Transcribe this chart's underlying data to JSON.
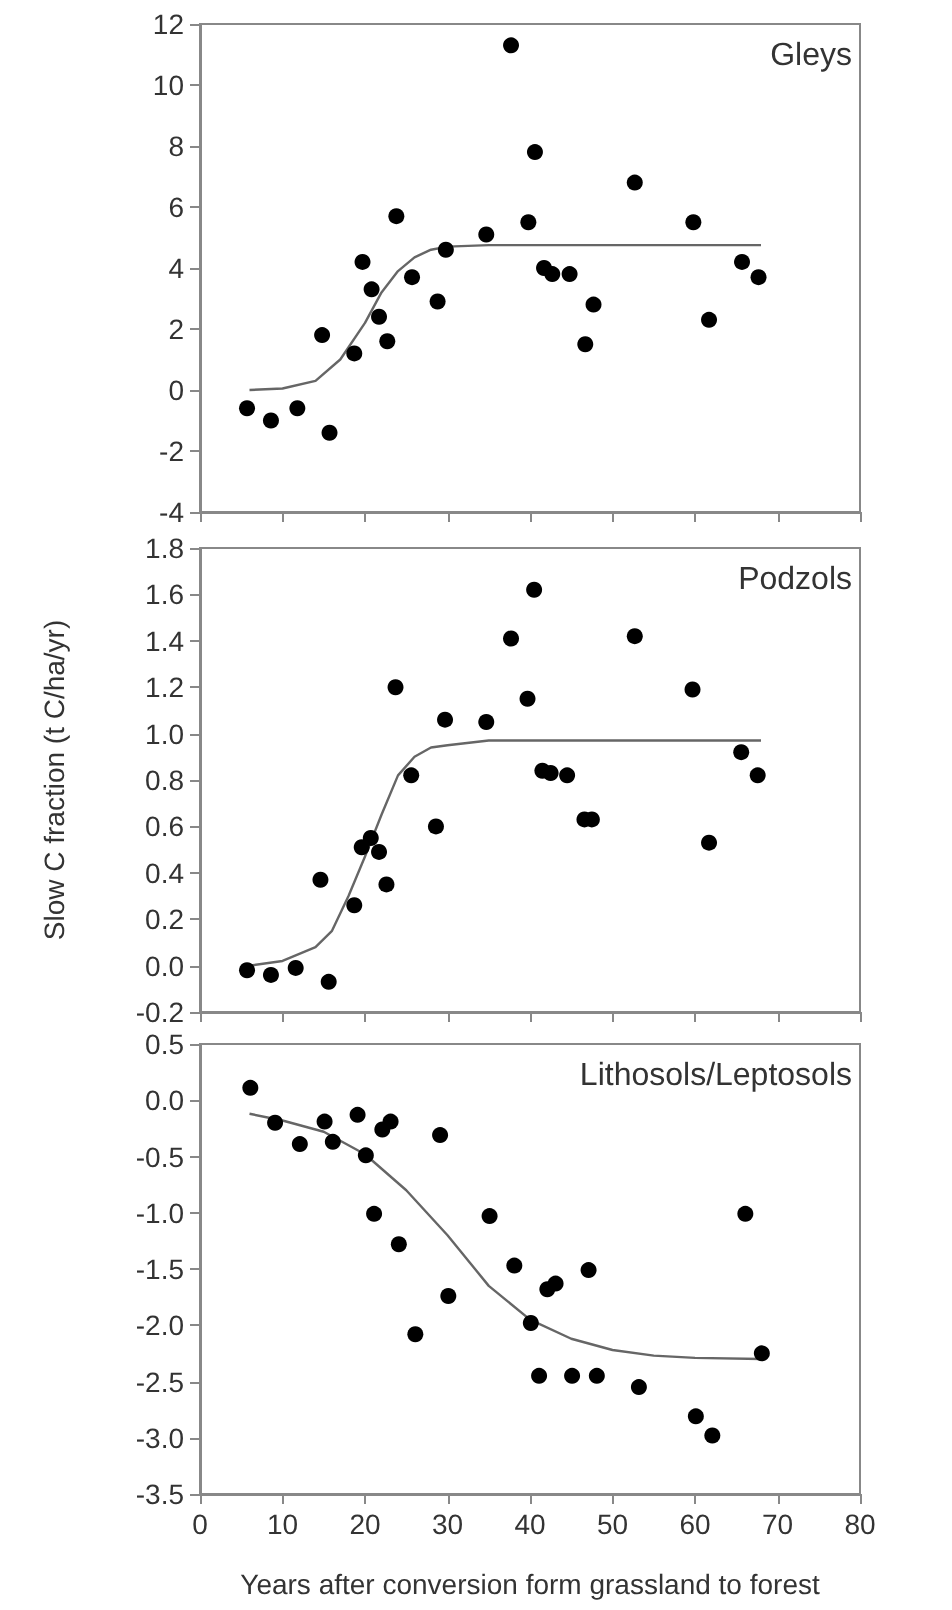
{
  "chart_data": [
    {
      "type": "scatter",
      "annotations": [
        "Gleys"
      ],
      "xlim": [
        0,
        80
      ],
      "xticks": [
        0,
        10,
        20,
        30,
        40,
        50,
        60,
        70,
        80
      ],
      "ylim": [
        -4,
        12
      ],
      "yticks": [
        -4,
        -2,
        0,
        2,
        4,
        6,
        8,
        10,
        12
      ],
      "tick_labels": "y",
      "marker": "circle",
      "grid": false,
      "series": [
        {
          "color": "#000000",
          "x": [
            5.7,
            8.6,
            11.8,
            14.8,
            15.7,
            18.7,
            19.7,
            20.8,
            21.7,
            22.7,
            23.8,
            25.7,
            28.8,
            29.8,
            34.7,
            37.7,
            39.8,
            40.6,
            41.7,
            42.7,
            44.8,
            46.7,
            47.7,
            52.7,
            59.8,
            61.7,
            65.7,
            67.7
          ],
          "values": [
            -0.6,
            -1.0,
            -0.6,
            1.8,
            -1.4,
            1.2,
            4.2,
            3.3,
            2.4,
            1.6,
            5.7,
            3.7,
            2.9,
            4.6,
            5.1,
            11.3,
            5.5,
            7.8,
            4.0,
            3.8,
            3.8,
            1.5,
            2.8,
            6.8,
            5.5,
            2.3,
            4.2,
            3.7
          ]
        },
        {
          "type": "line",
          "color": "#666666",
          "marker": "none",
          "x": [
            6,
            10,
            14,
            17,
            20,
            22,
            24,
            26,
            28,
            30,
            35,
            68
          ],
          "values": [
            0,
            0.05,
            0.3,
            1.0,
            2.2,
            3.2,
            3.9,
            4.35,
            4.6,
            4.7,
            4.75,
            4.75
          ]
        }
      ]
    },
    {
      "type": "scatter",
      "annotations": [
        "Podzols"
      ],
      "ylabel": "Slow C fraction (t C/ha/yr)",
      "xlim": [
        0,
        80
      ],
      "xticks": [
        0,
        10,
        20,
        30,
        40,
        50,
        60,
        70,
        80
      ],
      "ylim": [
        -0.2,
        1.8
      ],
      "yticks": [
        -0.2,
        {
          "value": 0,
          "label": "0.0"
        },
        0.2,
        0.4,
        0.6,
        0.8,
        {
          "value": 1,
          "label": "1.0"
        },
        1.2,
        1.4,
        1.6,
        1.8
      ],
      "tick_labels": "y",
      "marker": "circle",
      "grid": false,
      "series": [
        {
          "color": "#000000",
          "x": [
            5.7,
            8.6,
            11.6,
            14.6,
            15.6,
            18.7,
            19.6,
            20.7,
            21.7,
            22.6,
            23.7,
            25.6,
            28.6,
            29.7,
            34.7,
            37.7,
            39.7,
            40.5,
            41.5,
            42.5,
            44.5,
            46.6,
            47.5,
            52.7,
            59.7,
            61.7,
            65.6,
            67.6
          ],
          "values": [
            -0.02,
            -0.04,
            -0.01,
            0.37,
            -0.07,
            0.26,
            0.51,
            0.55,
            0.49,
            0.35,
            1.2,
            0.82,
            0.6,
            1.06,
            1.05,
            1.41,
            1.15,
            1.62,
            0.84,
            0.83,
            0.82,
            0.63,
            0.63,
            1.42,
            1.19,
            0.53,
            0.92,
            0.82
          ]
        },
        {
          "type": "line",
          "color": "#666666",
          "marker": "none",
          "x": [
            6,
            10,
            14,
            16,
            18,
            20,
            22,
            24,
            26,
            28,
            30,
            35,
            68
          ],
          "values": [
            0,
            0.02,
            0.08,
            0.15,
            0.3,
            0.47,
            0.65,
            0.82,
            0.9,
            0.94,
            0.95,
            0.97,
            0.97
          ]
        }
      ]
    },
    {
      "type": "scatter",
      "annotations": [
        "Lithosols/Leptosols"
      ],
      "xlabel": "Years after conversion form grassland to forest",
      "xlim": [
        0,
        80
      ],
      "xticks": [
        0,
        10,
        20,
        30,
        40,
        50,
        60,
        70,
        80
      ],
      "ylim": [
        -3.5,
        0.5
      ],
      "yticks": [
        -3.5,
        {
          "value": -3,
          "label": "-3.0"
        },
        -2.5,
        {
          "value": -2,
          "label": "-2.0"
        },
        -1.5,
        {
          "value": -1,
          "label": "-1.0"
        },
        -0.5,
        {
          "value": 0,
          "label": "0.0"
        },
        0.5
      ],
      "marker": "circle",
      "grid": false,
      "series": [
        {
          "color": "#000000",
          "x": [
            6.1,
            9.1,
            12.1,
            15.1,
            16.1,
            19.1,
            20.1,
            21.1,
            22.1,
            23.1,
            24.1,
            26.1,
            29.1,
            30.1,
            35.1,
            38.1,
            40.1,
            41.1,
            42.1,
            43.1,
            45.1,
            47.1,
            48.1,
            53.2,
            60.1,
            62.1,
            66.1,
            68.1
          ],
          "values": [
            0.11,
            -0.2,
            -0.39,
            -0.19,
            -0.37,
            -0.13,
            -0.49,
            -1.01,
            -0.26,
            -0.19,
            -1.28,
            -2.08,
            -0.31,
            -1.74,
            -1.03,
            -1.47,
            -1.98,
            -2.45,
            -1.68,
            -1.63,
            -2.45,
            -1.51,
            -2.45,
            -2.55,
            -2.81,
            -2.98,
            -1.01,
            -2.25
          ]
        },
        {
          "type": "line",
          "color": "#666666",
          "marker": "none",
          "x": [
            6,
            10,
            15,
            20,
            25,
            30,
            35,
            40,
            45,
            50,
            55,
            60,
            68
          ],
          "values": [
            -0.12,
            -0.18,
            -0.28,
            -0.48,
            -0.8,
            -1.2,
            -1.65,
            -1.95,
            -2.12,
            -2.22,
            -2.27,
            -2.29,
            -2.3
          ]
        }
      ]
    }
  ]
}
